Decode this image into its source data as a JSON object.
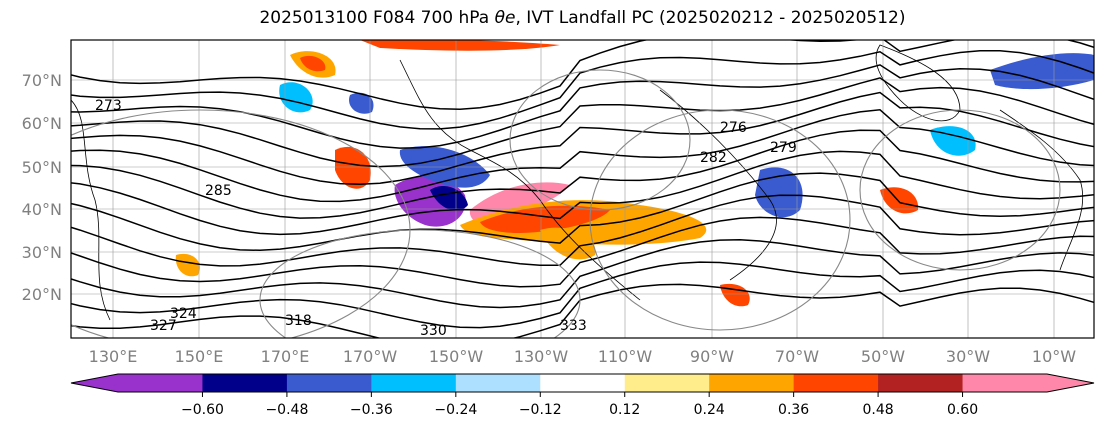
{
  "title": {
    "prefix": "2025013100 F084 700 hPa ",
    "symbol": "θe",
    "suffix": ", IVT Landfall PC (2025020212 - 2025020512)"
  },
  "map": {
    "lat_ticks": [
      "70°N",
      "60°N",
      "50°N",
      "40°N",
      "30°N",
      "20°N"
    ],
    "lon_ticks": [
      "130°E",
      "150°E",
      "170°E",
      "170°W",
      "150°W",
      "130°W",
      "110°W",
      "90°W",
      "70°W",
      "50°W",
      "30°W",
      "10°W"
    ],
    "contour_labels": [
      "273",
      "276",
      "279",
      "282",
      "285",
      "318",
      "324",
      "327",
      "330",
      "333"
    ],
    "tick_color": "#808080"
  },
  "colorbar": {
    "tick_labels": [
      "−0.60",
      "−0.48",
      "−0.36",
      "−0.24",
      "−0.12",
      "0.12",
      "0.24",
      "0.36",
      "0.48",
      "0.60"
    ],
    "below_color": "#9932CC",
    "above_color": "#FF88AA",
    "colors": [
      "#9932CC",
      "#00008B",
      "#3A5BD0",
      "#00BFFF",
      "#ADDFFF",
      "#FFFFFF",
      "#FFEC8B",
      "#FFA500",
      "#FF4500",
      "#B22222",
      "#FF88AA"
    ]
  }
}
